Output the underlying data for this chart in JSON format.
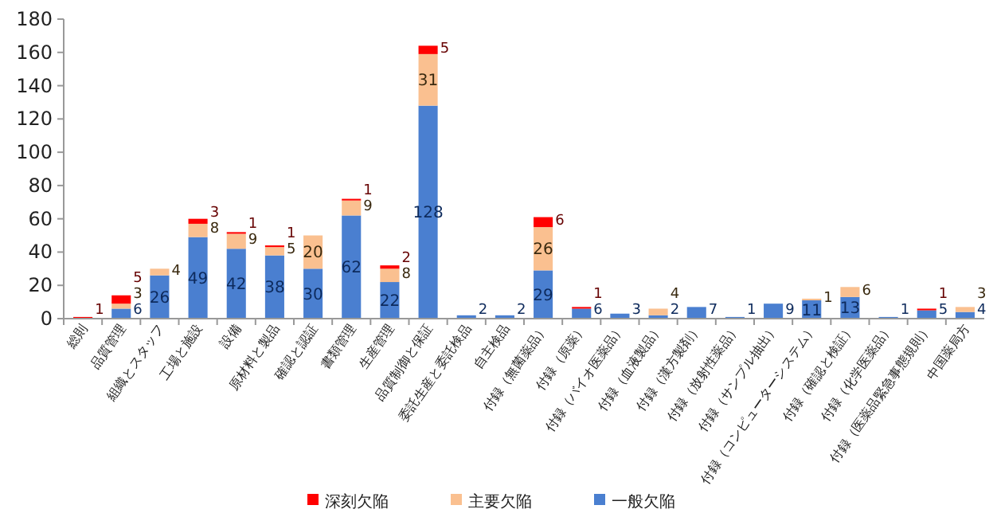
{
  "chart_data": {
    "type": "bar",
    "stacked": true,
    "data_labels": true,
    "legend": "bottom",
    "grid": false,
    "categories": [
      "総則",
      "品質管理",
      "組織とスタッフ",
      "工場と施設",
      "設備",
      "原材料と製品",
      "確認と認証",
      "書類管理",
      "生産管理",
      "品質制御と保証",
      "委託生産と委託検品",
      "自主検品",
      "付録（無菌薬品）",
      "付録（原薬）",
      "付録（バイオ医薬品）",
      "付録（血液製品）",
      "付録（漢方製剤）",
      "付録（放射性薬品）",
      "付録（サンプル抽出）",
      "付録（コンピューターシステム）",
      "付録（確認と検証）",
      "付録（化学医薬品）",
      "付録（医薬品緊急事態規則）",
      "中国薬局方"
    ],
    "ylim": [
      0,
      180
    ],
    "yticks": [
      0,
      20,
      40,
      60,
      80,
      100,
      120,
      140,
      160,
      180
    ],
    "series": [
      {
        "name": "一般欠陥",
        "color": "#4a7fd0",
        "values": [
          null,
          6,
          26,
          49,
          42,
          38,
          30,
          62,
          22,
          128,
          2,
          2,
          29,
          6,
          3,
          2,
          7,
          1,
          9,
          11,
          13,
          1,
          5,
          4
        ]
      },
      {
        "name": "主要欠陥",
        "color": "#fac090",
        "values": [
          null,
          3,
          4,
          8,
          9,
          5,
          20,
          9,
          8,
          31,
          null,
          null,
          26,
          null,
          null,
          4,
          null,
          null,
          null,
          1,
          6,
          null,
          null,
          3
        ]
      },
      {
        "name": "深刻欠陥",
        "color": "#ff0000",
        "values": [
          1,
          5,
          null,
          3,
          1,
          1,
          null,
          1,
          2,
          5,
          null,
          null,
          6,
          1,
          null,
          null,
          null,
          null,
          null,
          null,
          null,
          null,
          1,
          null
        ]
      }
    ]
  }
}
